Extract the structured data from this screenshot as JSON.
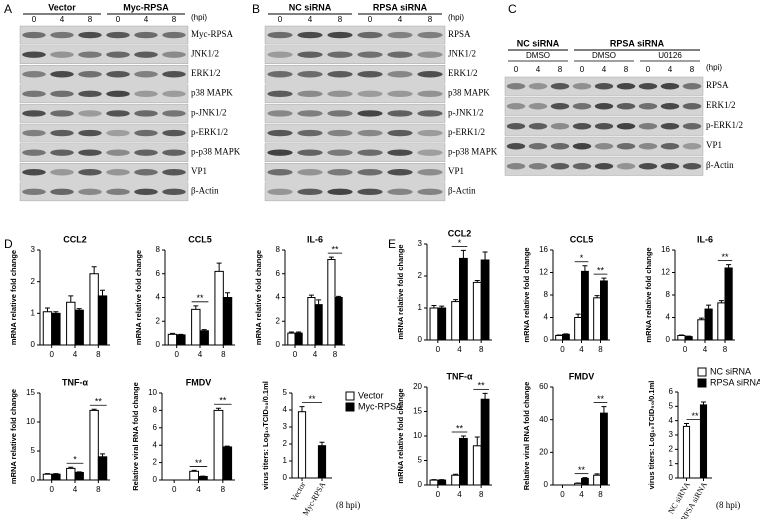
{
  "panels": [
    "A",
    "B",
    "C",
    "D",
    "E"
  ],
  "blots": [
    {
      "groups": [
        "Vector",
        "Myc-RPSA"
      ],
      "lanes": [
        "0",
        "4",
        "8",
        "0",
        "4",
        "8"
      ],
      "unit": "(hpi)",
      "rows": [
        "Myc-RPSA",
        "JNK1/2",
        "ERK1/2",
        "p38 MAPK",
        "p-JNK1/2",
        "p-ERK1/2",
        "p-p38 MAPK",
        "VP1",
        "β-Actin"
      ]
    },
    {
      "groups": [
        "NC siRNA",
        "RPSA siRNA"
      ],
      "lanes": [
        "0",
        "4",
        "8",
        "0",
        "4",
        "8"
      ],
      "unit": "(hpi)",
      "rows": [
        "RPSA",
        "JNK1/2",
        "ERK1/2",
        "p38 MAPK",
        "p-JNK1/2",
        "p-ERK1/2",
        "p-p38 MAPK",
        "VP1",
        "β-Actin"
      ]
    },
    {
      "groups": [
        "NC siRNA",
        "RPSA siRNA"
      ],
      "treatments": [
        "DMSO",
        "DMSO",
        "U0126"
      ],
      "lanes": [
        "0",
        "4",
        "8",
        "0",
        "4",
        "8",
        "0",
        "4",
        "8"
      ],
      "unit": "(hpi)",
      "rows": [
        "RPSA",
        "ERK1/2",
        "p-ERK1/2",
        "VP1",
        "β-Actin"
      ]
    }
  ],
  "chart_data": [
    {
      "type": "bar",
      "title": "CCL2",
      "ylabel": "mRNA relative fold change",
      "categories": [
        "0",
        "4",
        "8"
      ],
      "series": [
        {
          "name": "Vector",
          "color": "#ffffff",
          "values": [
            1.05,
            1.35,
            2.25
          ],
          "errors": [
            0.12,
            0.2,
            0.22
          ]
        },
        {
          "name": "Myc-RPSA",
          "color": "#000000",
          "values": [
            1.0,
            1.1,
            1.55
          ],
          "errors": [
            0.05,
            0.05,
            0.18
          ]
        }
      ],
      "ylim": [
        0,
        3
      ],
      "yticks": [
        0,
        1,
        2,
        3
      ],
      "significance": [
        null,
        null,
        null
      ]
    },
    {
      "type": "bar",
      "title": "CCL5",
      "ylabel": "mRNA relative fold change",
      "categories": [
        "0",
        "4",
        "8"
      ],
      "series": [
        {
          "name": "Vector",
          "color": "#ffffff",
          "values": [
            0.9,
            3.0,
            6.2
          ],
          "errors": [
            0.08,
            0.3,
            0.7
          ]
        },
        {
          "name": "Myc-RPSA",
          "color": "#000000",
          "values": [
            0.85,
            1.2,
            4.0
          ],
          "errors": [
            0.05,
            0.1,
            0.4
          ]
        }
      ],
      "ylim": [
        0,
        8
      ],
      "yticks": [
        0,
        2,
        4,
        6,
        8
      ],
      "significance": [
        null,
        "**",
        null
      ]
    },
    {
      "type": "bar",
      "title": "IL-6",
      "ylabel": "mRNA relative fold change",
      "categories": [
        "0",
        "4",
        "8"
      ],
      "series": [
        {
          "name": "Vector",
          "color": "#ffffff",
          "values": [
            1.0,
            4.0,
            7.2
          ],
          "errors": [
            0.1,
            0.2,
            0.2
          ]
        },
        {
          "name": "Myc-RPSA",
          "color": "#000000",
          "values": [
            1.0,
            3.4,
            4.0
          ],
          "errors": [
            0.1,
            0.4,
            0.1
          ]
        }
      ],
      "ylim": [
        0,
        8
      ],
      "yticks": [
        0,
        2,
        4,
        6,
        8
      ],
      "significance": [
        null,
        null,
        "**"
      ]
    },
    {
      "type": "bar",
      "title": "TNF-α",
      "ylabel": "mRNA relative fold change",
      "categories": [
        "0",
        "4",
        "8"
      ],
      "series": [
        {
          "name": "Vector",
          "color": "#ffffff",
          "values": [
            1.0,
            2.0,
            12.0
          ],
          "errors": [
            0.1,
            0.2,
            0.2
          ]
        },
        {
          "name": "Myc-RPSA",
          "color": "#000000",
          "values": [
            1.0,
            1.3,
            4.0
          ],
          "errors": [
            0.1,
            0.1,
            0.5
          ]
        }
      ],
      "ylim": [
        0,
        15
      ],
      "yticks": [
        0,
        5,
        10,
        15
      ],
      "significance": [
        null,
        "*",
        "**"
      ]
    },
    {
      "type": "bar",
      "title": "FMDV",
      "ylabel": "Relative viral RNA fold change",
      "categories": [
        "0",
        "4",
        "8"
      ],
      "series": [
        {
          "name": "Vector",
          "color": "#ffffff",
          "values": [
            0,
            1.0,
            8.0
          ],
          "errors": [
            0,
            0.1,
            0.25
          ]
        },
        {
          "name": "Myc-RPSA",
          "color": "#000000",
          "values": [
            0,
            0.4,
            3.8
          ],
          "errors": [
            0,
            0.05,
            0.1
          ]
        }
      ],
      "ylim": [
        0,
        10
      ],
      "yticks": [
        0,
        2,
        4,
        6,
        8,
        10
      ],
      "significance": [
        null,
        "**",
        "**"
      ]
    },
    {
      "type": "bar",
      "title": null,
      "ylabel": "virus titers: Log₁₀TCID₅₀/0.1ml",
      "categories": [
        "Vector",
        "Myc-RPSA"
      ],
      "series": [
        {
          "name": "Vector",
          "color": "#ffffff",
          "values": [
            3.9,
            null
          ],
          "errors": [
            0.3,
            null
          ]
        },
        {
          "name": "Myc-RPSA",
          "color": "#000000",
          "values": [
            null,
            1.9
          ],
          "errors": [
            null,
            0.2
          ]
        }
      ],
      "ylim": [
        0,
        5
      ],
      "yticks": [
        0,
        1,
        2,
        3,
        4,
        5
      ],
      "significance": [
        "**",
        null
      ],
      "note": "(8 hpi)",
      "legend": true
    },
    {
      "type": "bar",
      "title": "CCL2",
      "ylabel": "mRNA relative fold change",
      "categories": [
        "0",
        "4",
        "8"
      ],
      "series": [
        {
          "name": "NC siRNA",
          "color": "#ffffff",
          "values": [
            1.0,
            1.2,
            1.8
          ],
          "errors": [
            0.08,
            0.06,
            0.06
          ]
        },
        {
          "name": "RPSA siRNA",
          "color": "#000000",
          "values": [
            1.0,
            2.55,
            2.5
          ],
          "errors": [
            0.06,
            0.25,
            0.25
          ]
        }
      ],
      "ylim": [
        0,
        3
      ],
      "yticks": [
        0,
        1,
        2,
        3
      ],
      "significance": [
        null,
        "*",
        null
      ]
    },
    {
      "type": "bar",
      "title": "CCL5",
      "ylabel": "mRNA relative fold change",
      "categories": [
        "0",
        "4",
        "8"
      ],
      "series": [
        {
          "name": "NC siRNA",
          "color": "#ffffff",
          "values": [
            0.8,
            4.0,
            7.5
          ],
          "errors": [
            0.1,
            0.6,
            0.4
          ]
        },
        {
          "name": "RPSA siRNA",
          "color": "#000000",
          "values": [
            1.0,
            12.2,
            10.5
          ],
          "errors": [
            0.1,
            1.0,
            0.5
          ]
        }
      ],
      "ylim": [
        0,
        16
      ],
      "yticks": [
        0,
        4,
        8,
        12,
        16
      ],
      "significance": [
        null,
        "*",
        "**"
      ]
    },
    {
      "type": "bar",
      "title": "IL-6",
      "ylabel": "mRNA relative fold change",
      "categories": [
        "0",
        "4",
        "8"
      ],
      "series": [
        {
          "name": "NC siRNA",
          "color": "#ffffff",
          "values": [
            0.8,
            3.6,
            6.6
          ],
          "errors": [
            0.1,
            0.3,
            0.4
          ]
        },
        {
          "name": "RPSA siRNA",
          "color": "#000000",
          "values": [
            0.6,
            5.5,
            12.8
          ],
          "errors": [
            0.1,
            0.7,
            0.6
          ]
        }
      ],
      "ylim": [
        0,
        16
      ],
      "yticks": [
        0,
        4,
        8,
        12,
        16
      ],
      "significance": [
        null,
        null,
        "**"
      ]
    },
    {
      "type": "bar",
      "title": "TNF-α",
      "ylabel": "mRNA relative fold change",
      "categories": [
        "0",
        "4",
        "8"
      ],
      "series": [
        {
          "name": "NC siRNA",
          "color": "#ffffff",
          "values": [
            1.0,
            2.0,
            8.0
          ],
          "errors": [
            0.1,
            0.2,
            1.8
          ]
        },
        {
          "name": "RPSA siRNA",
          "color": "#000000",
          "values": [
            1.0,
            9.5,
            17.5
          ],
          "errors": [
            0.1,
            0.5,
            1.2
          ]
        }
      ],
      "ylim": [
        0,
        20
      ],
      "yticks": [
        0,
        5,
        10,
        15,
        20
      ],
      "significance": [
        null,
        "**",
        "**"
      ]
    },
    {
      "type": "bar",
      "title": "FMDV",
      "ylabel": "Relative viral RNA fold change",
      "categories": [
        "0",
        "4",
        "8"
      ],
      "series": [
        {
          "name": "NC siRNA",
          "color": "#ffffff",
          "values": [
            0,
            1.0,
            6.0
          ],
          "errors": [
            0,
            0.2,
            0.8
          ]
        },
        {
          "name": "RPSA siRNA",
          "color": "#000000",
          "values": [
            0,
            4.0,
            44.0
          ],
          "errors": [
            0,
            0.5,
            4.0
          ]
        }
      ],
      "ylim": [
        0,
        60
      ],
      "yticks": [
        0,
        20,
        40,
        60
      ],
      "significance": [
        null,
        "**",
        "**"
      ]
    },
    {
      "type": "bar",
      "title": null,
      "ylabel": "virus titers: Log₁₀TCID₅₀/0.1ml",
      "categories": [
        "NC siRNA",
        "RPSA siRNA"
      ],
      "series": [
        {
          "name": "NC siRNA",
          "color": "#ffffff",
          "values": [
            3.6,
            null
          ],
          "errors": [
            0.2,
            null
          ]
        },
        {
          "name": "RPSA siRNA",
          "color": "#000000",
          "values": [
            null,
            5.1
          ],
          "errors": [
            null,
            0.2
          ]
        }
      ],
      "ylim": [
        0,
        6
      ],
      "yticks": [
        0,
        1,
        2,
        3,
        4,
        5,
        6
      ],
      "significance": [
        "**",
        null
      ],
      "note": "(8 hpi)",
      "legend": true
    }
  ]
}
